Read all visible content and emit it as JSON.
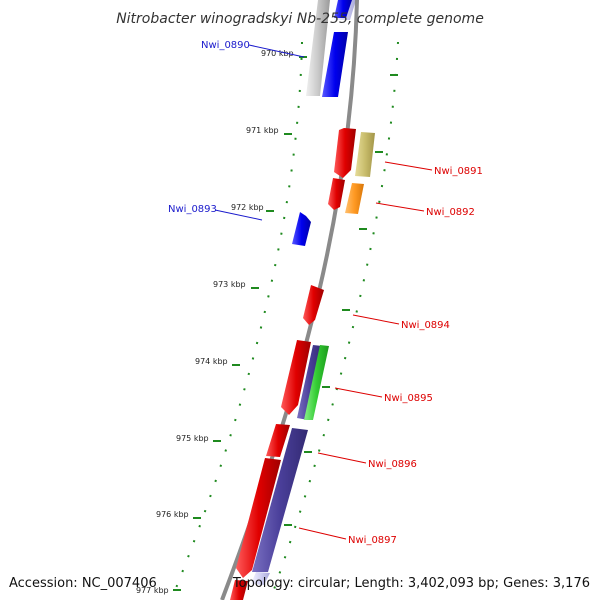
{
  "title": "Nitrobacter winogradskyi Nb-255, complete genome",
  "accession": "Accession: NC_007406",
  "summary": "Topology: circular; Length: 3,402,093 bp; Genes: 3,176",
  "ticks": [
    "970 kbp",
    "971 kbp",
    "972 kbp",
    "973 kbp",
    "974 kbp",
    "975 kbp",
    "976 kbp",
    "977 kbp"
  ],
  "genes": [
    {
      "id": "Nwi_0890",
      "color": "#1a1acc"
    },
    {
      "id": "Nwi_0891",
      "color": "#dd0000"
    },
    {
      "id": "Nwi_0892",
      "color": "#dd0000"
    },
    {
      "id": "Nwi_0893",
      "color": "#1a1acc"
    },
    {
      "id": "Nwi_0894",
      "color": "#dd0000"
    },
    {
      "id": "Nwi_0895",
      "color": "#dd0000"
    },
    {
      "id": "Nwi_0896",
      "color": "#dd0000"
    },
    {
      "id": "Nwi_0897",
      "color": "#dd0000"
    }
  ],
  "colors": {
    "backbone": "#8a8a8a",
    "tick": "#1f8a1f",
    "forward_cds": "#ee1111",
    "reverse_cds": "#1111ee",
    "slate": "#4a3f9a",
    "green": "#33cc33",
    "olive": "#c9bd6c",
    "orange": "#ff9922",
    "grey_feature": "#c9c9c9"
  }
}
